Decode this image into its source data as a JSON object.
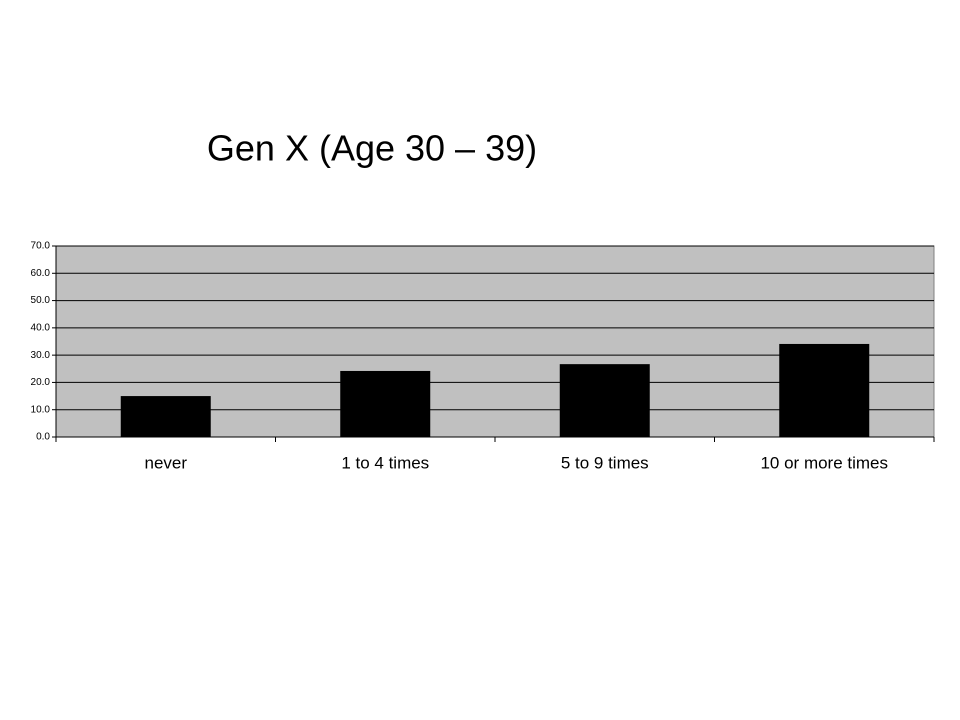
{
  "chart_data": {
    "type": "bar",
    "title": "Gen X (Age 30 – 39)",
    "categories": [
      "never",
      "1 to 4 times",
      "5 to 9 times",
      "10 or more times"
    ],
    "values": [
      15.0,
      24.2,
      26.7,
      34.1
    ],
    "color": "#000000",
    "ylim": [
      0,
      70
    ],
    "yticks": [
      {
        "value": 0,
        "label": "0.0"
      },
      {
        "value": 10,
        "label": "10.0"
      },
      {
        "value": 20,
        "label": "20.0"
      },
      {
        "value": 30,
        "label": "30.0"
      },
      {
        "value": 40,
        "label": "40.0"
      },
      {
        "value": 50,
        "label": "50.0"
      },
      {
        "value": 60,
        "label": "60.0"
      },
      {
        "value": 70,
        "label": "70.0"
      }
    ],
    "grid": true
  }
}
